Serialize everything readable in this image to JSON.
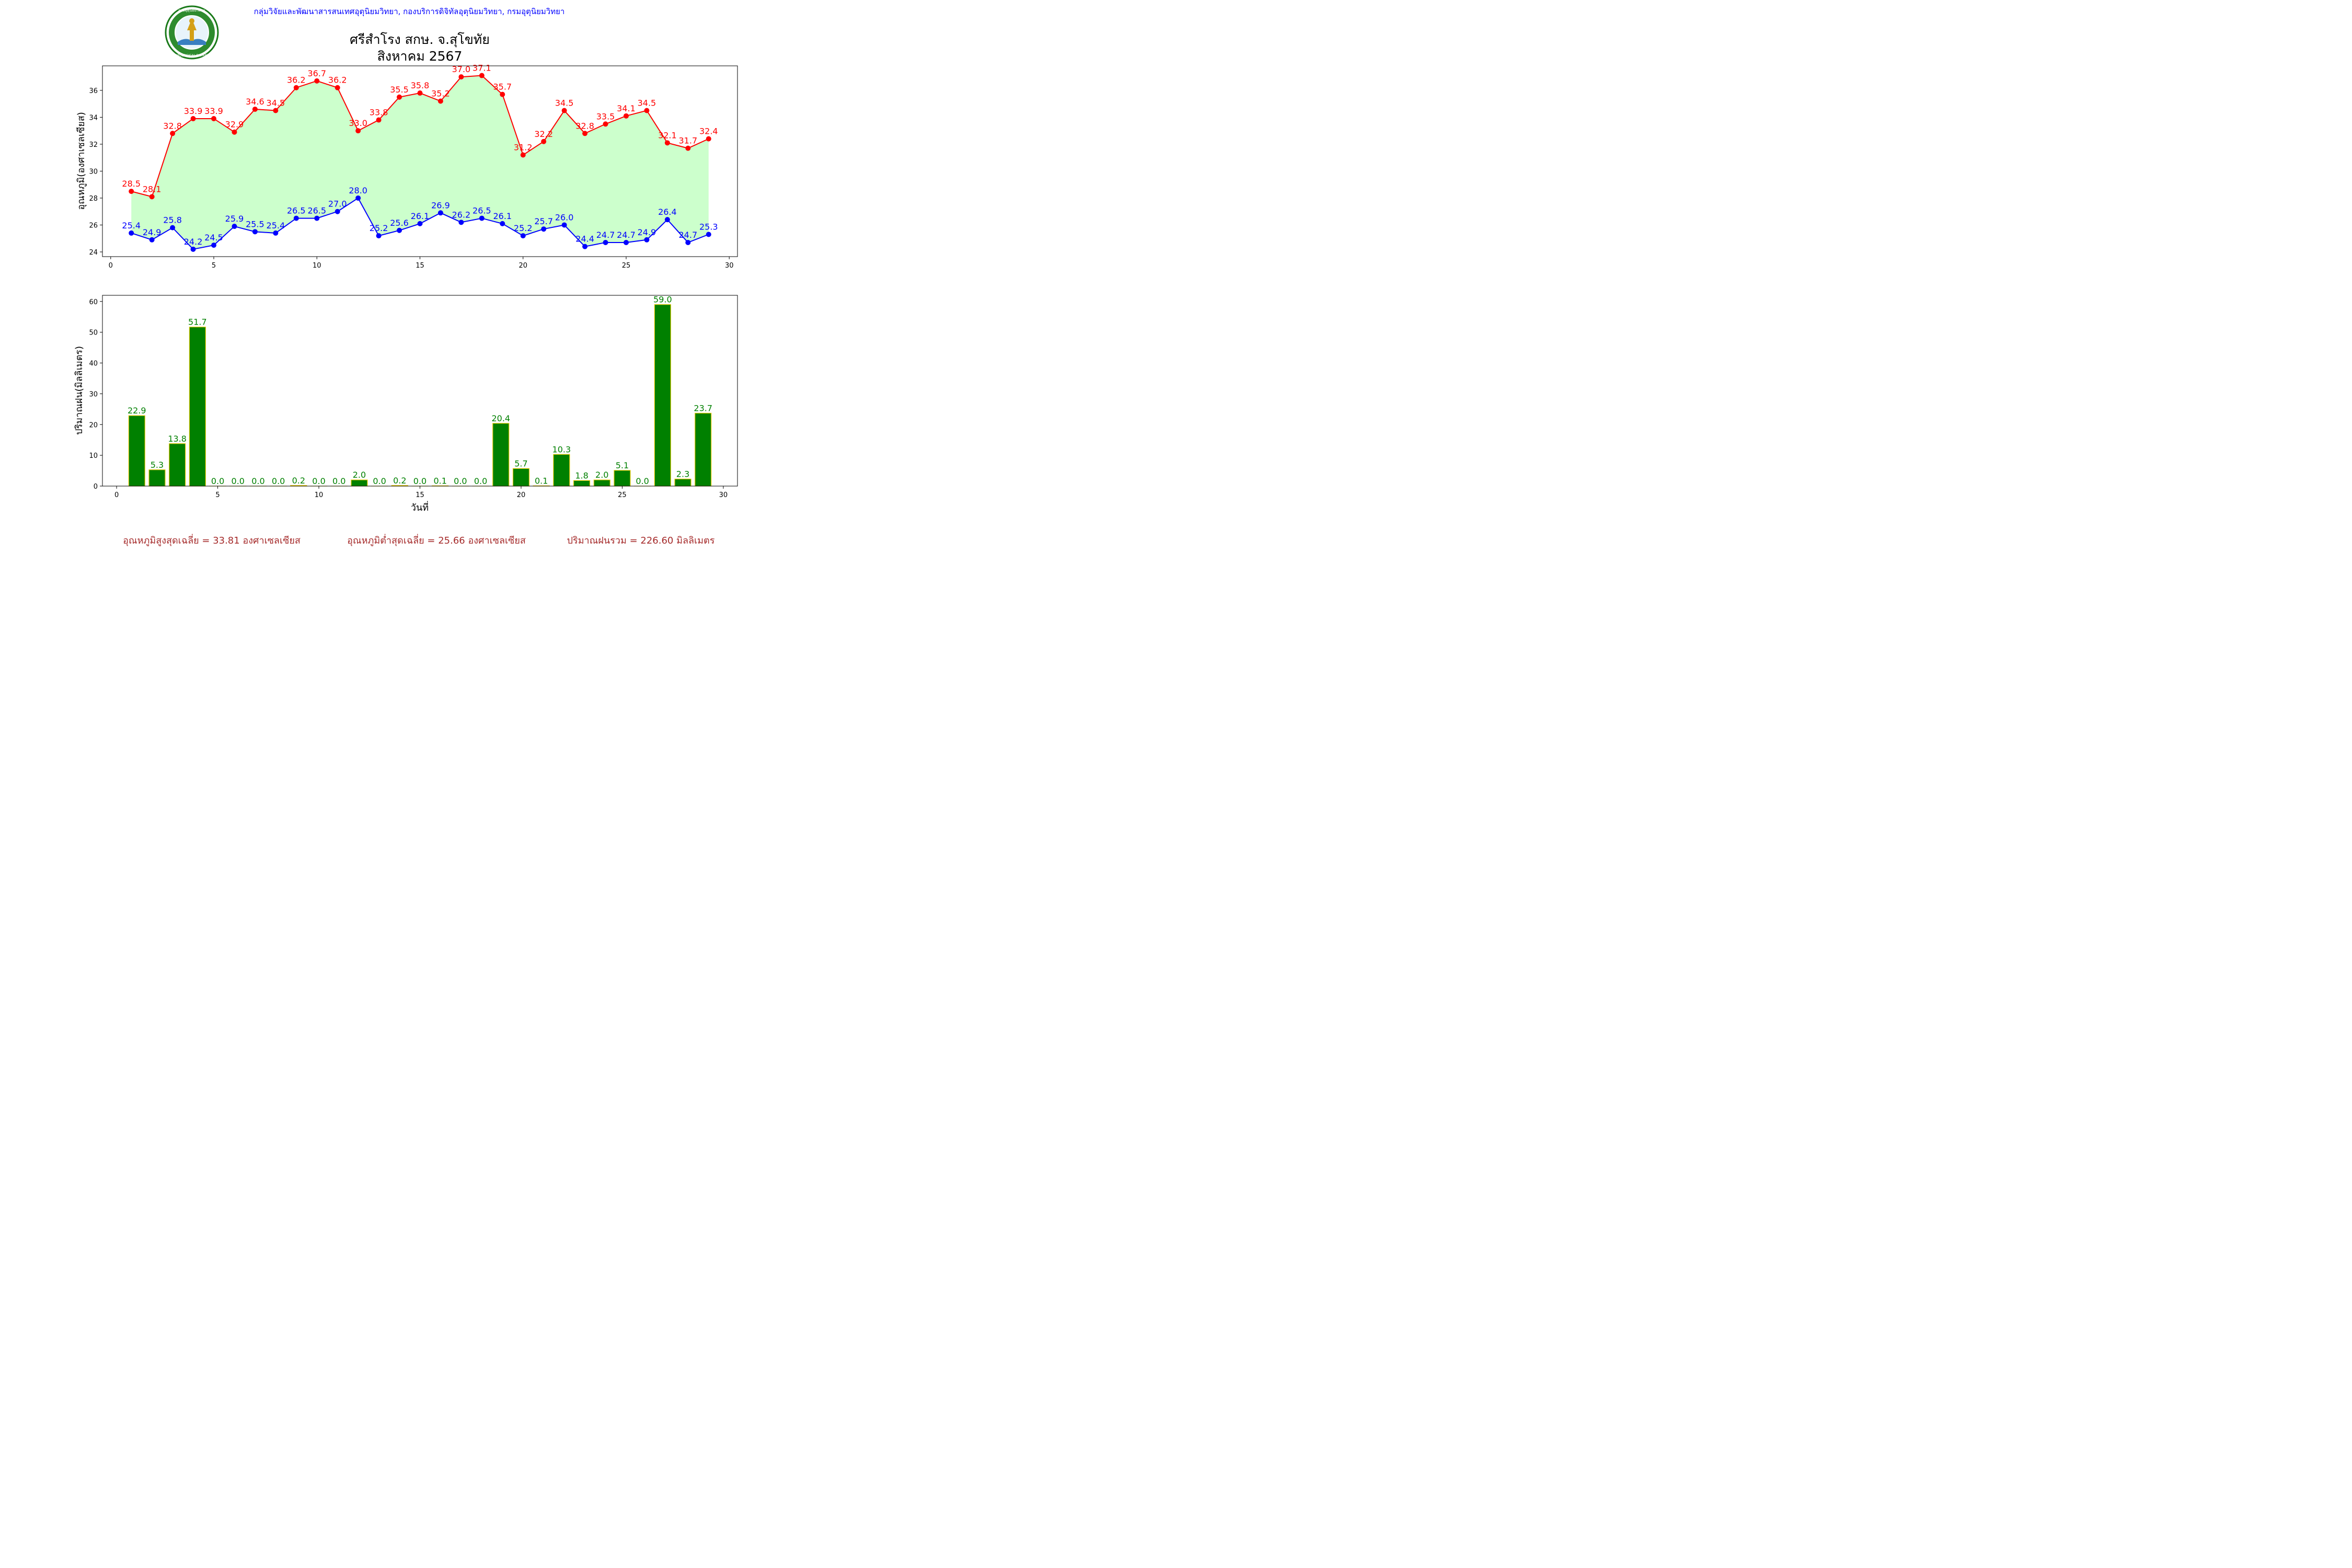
{
  "header": {
    "organization": "กลุ่มวิจัยและพัฒนาสารสนเทศอุตุนิยมวิทยา, กองบริการดิจิทัลอุตุนิยมวิทยา, กรมอุตุนิยมวิทยา",
    "title_line1": "ศรีสำโรง สกษ. จ.สุโขทัย",
    "title_line2": "สิงหาคม 2567",
    "logo_top_text": "กรมอุตุนิยมวิทยา",
    "logo_bottom_text": "METEOROLOGICAL DEPARTMENT"
  },
  "colors": {
    "max_temp": "#ff0000",
    "min_temp": "#0000ff",
    "temp_fill": "#ccffcc",
    "rain_bar": "#008000",
    "rain_bar_edge": "#e6c800",
    "rain_label": "#008000",
    "org_text": "#0000ff",
    "footer_text": "#a52a2a"
  },
  "chart_data": [
    {
      "type": "line",
      "ylabel": "อุณหภูมิ(องศาเซลเซียส)",
      "xlim": [
        -0.4,
        30.4
      ],
      "ylim": [
        23.65,
        37.82
      ],
      "x_ticks": [
        0,
        5,
        10,
        15,
        20,
        25,
        30
      ],
      "y_ticks": [
        24,
        26,
        28,
        30,
        32,
        34,
        36
      ],
      "x": [
        1,
        2,
        3,
        4,
        5,
        6,
        7,
        8,
        9,
        10,
        11,
        12,
        13,
        14,
        15,
        16,
        17,
        18,
        19,
        20,
        21,
        22,
        23,
        24,
        25,
        26,
        27,
        28,
        29
      ],
      "series": [
        {
          "key": "max",
          "values": [
            28.5,
            28.1,
            32.8,
            33.9,
            33.9,
            32.9,
            34.6,
            34.5,
            36.2,
            36.7,
            36.2,
            33.0,
            33.8,
            35.5,
            35.8,
            35.2,
            37.0,
            37.1,
            35.7,
            31.2,
            32.2,
            34.5,
            32.8,
            33.5,
            34.1,
            34.5,
            32.1,
            31.7,
            32.4
          ]
        },
        {
          "key": "min",
          "values": [
            25.4,
            24.9,
            25.8,
            24.2,
            24.5,
            25.9,
            25.5,
            25.4,
            26.5,
            26.5,
            27.0,
            28.0,
            25.2,
            25.6,
            26.1,
            26.9,
            26.2,
            26.5,
            26.1,
            25.2,
            25.7,
            26.0,
            24.4,
            24.7,
            24.7,
            24.9,
            26.4,
            24.7,
            25.3
          ]
        }
      ]
    },
    {
      "type": "bar",
      "ylabel": "ปริมาณฝน(มิลลิเมตร)",
      "xlabel": "วันที่",
      "xlim": [
        -0.7,
        30.7
      ],
      "ylim": [
        0,
        62
      ],
      "x_ticks": [
        0,
        5,
        10,
        15,
        20,
        25,
        30
      ],
      "y_ticks": [
        0,
        10,
        20,
        30,
        40,
        50,
        60
      ],
      "x": [
        1,
        2,
        3,
        4,
        5,
        6,
        7,
        8,
        9,
        10,
        11,
        12,
        13,
        14,
        15,
        16,
        17,
        18,
        19,
        20,
        21,
        22,
        23,
        24,
        25,
        26,
        27,
        28,
        29
      ],
      "values": [
        22.9,
        5.3,
        13.8,
        51.7,
        0.0,
        0.0,
        0.0,
        0.0,
        0.2,
        0.0,
        0.0,
        2.0,
        0.0,
        0.2,
        0.0,
        0.1,
        0.0,
        0.0,
        20.4,
        5.7,
        0.1,
        10.3,
        1.8,
        2.0,
        5.1,
        0.0,
        59.0,
        2.3,
        23.7
      ]
    }
  ],
  "footer": {
    "avg_max": "อุณหภูมิสูงสุดเฉลี่ย = 33.81 องศาเซลเซียส",
    "avg_min": "อุณหภูมิต่ำสุดเฉลี่ย = 25.66 องศาเซลเซียส",
    "total_rain": "ปริมาณฝนรวม = 226.60 มิลลิเมตร"
  }
}
